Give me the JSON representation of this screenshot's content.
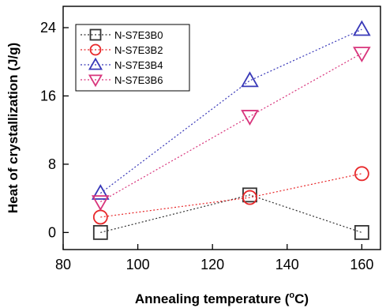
{
  "chart_data": {
    "type": "line",
    "xlabel": "Annealing temperature",
    "xlabel_unit_prefix": " (",
    "xlabel_degree": "o",
    "xlabel_unit": "C)",
    "ylabel": "Heat of crystallization (J/g)",
    "xlim": [
      80,
      165
    ],
    "ylim": [
      -2,
      26.5
    ],
    "x_ticks": [
      80,
      100,
      120,
      140,
      160
    ],
    "y_ticks": [
      0,
      8,
      16,
      24
    ],
    "legend_position": "top-left",
    "grid": false,
    "series": [
      {
        "name": "N-S7E3B0",
        "marker": "square",
        "color": "#333333",
        "x": [
          90,
          130,
          160
        ],
        "y": [
          0,
          4.4,
          0
        ]
      },
      {
        "name": "N-S7E3B2",
        "marker": "circle",
        "color": "#e8282a",
        "x": [
          90,
          130,
          160
        ],
        "y": [
          1.8,
          4.1,
          6.9
        ]
      },
      {
        "name": "N-S7E3B4",
        "marker": "triangle-up",
        "color": "#3838b8",
        "x": [
          90,
          130,
          160
        ],
        "y": [
          4.6,
          17.8,
          23.8
        ]
      },
      {
        "name": "N-S7E3B6",
        "marker": "triangle-down",
        "color": "#d8357c",
        "x": [
          90,
          130,
          160
        ],
        "y": [
          3.6,
          13.6,
          21.0
        ]
      }
    ]
  }
}
